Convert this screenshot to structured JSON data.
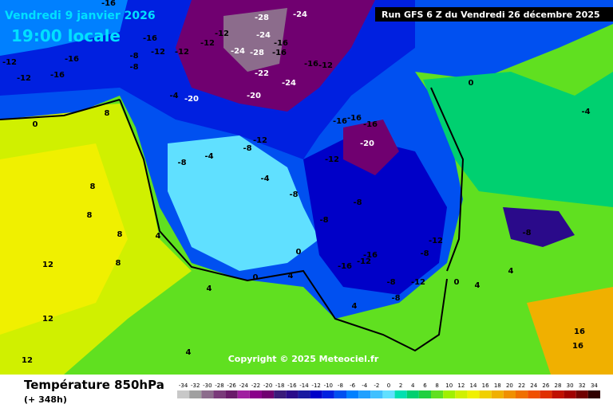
{
  "header": {
    "date": "Vendredi 9 janvier 2026",
    "time": "19:00 locale",
    "run": "Run GFS 6 Z du Vendredi 26 décembre 2025"
  },
  "map": {
    "contour_labels": [
      -16,
      -28,
      -24,
      -24,
      -16,
      -28,
      -16,
      -24,
      -12,
      -12,
      -12,
      -12,
      -16,
      -12,
      -12,
      -16,
      -16,
      -8,
      -8,
      -16,
      -12,
      -24,
      -22,
      -20,
      -20,
      -4,
      0,
      -16,
      -16,
      -16,
      -20,
      -12,
      -8,
      -8,
      -4,
      -4,
      -12,
      -8,
      -8,
      -8,
      -12,
      -8,
      -16,
      -16,
      -12,
      -8,
      -12,
      -8,
      0,
      0,
      0,
      4,
      4,
      4,
      4,
      4,
      4,
      4,
      8,
      8,
      8,
      8,
      8,
      12,
      12,
      12,
      16,
      16,
      -8,
      -4,
      0
    ]
  },
  "copyright": "Copyright © 2025 Meteociel.fr",
  "legend": {
    "title": "Température 850hPa",
    "lead_time": "(+ 348h)",
    "scale_values": [
      -34,
      -32,
      -30,
      -28,
      -26,
      -24,
      -22,
      -20,
      -18,
      -16,
      -14,
      -12,
      -10,
      -8,
      -6,
      -4,
      -2,
      0,
      2,
      4,
      6,
      8,
      10,
      12,
      14,
      16,
      18,
      20,
      22,
      24,
      26,
      28,
      30,
      32,
      34
    ],
    "scale_colors": [
      "#c8c8c8",
      "#a0a0a0",
      "#8c6c8c",
      "#7a3a7a",
      "#6a1a6a",
      "#a020a0",
      "#8a008a",
      "#700070",
      "#3a1a7a",
      "#2a0a8a",
      "#1a1aa0",
      "#0000c8",
      "#0020e0",
      "#0050f0",
      "#0080ff",
      "#20a0ff",
      "#40c0ff",
      "#60e0ff",
      "#00e0b0",
      "#00d070",
      "#20d040",
      "#60e020",
      "#a0f000",
      "#d0f000",
      "#f0f000",
      "#f0d000",
      "#f0b000",
      "#f09000",
      "#f07000",
      "#f05000",
      "#e03000",
      "#c01000",
      "#a00000",
      "#700000",
      "#300000"
    ]
  }
}
